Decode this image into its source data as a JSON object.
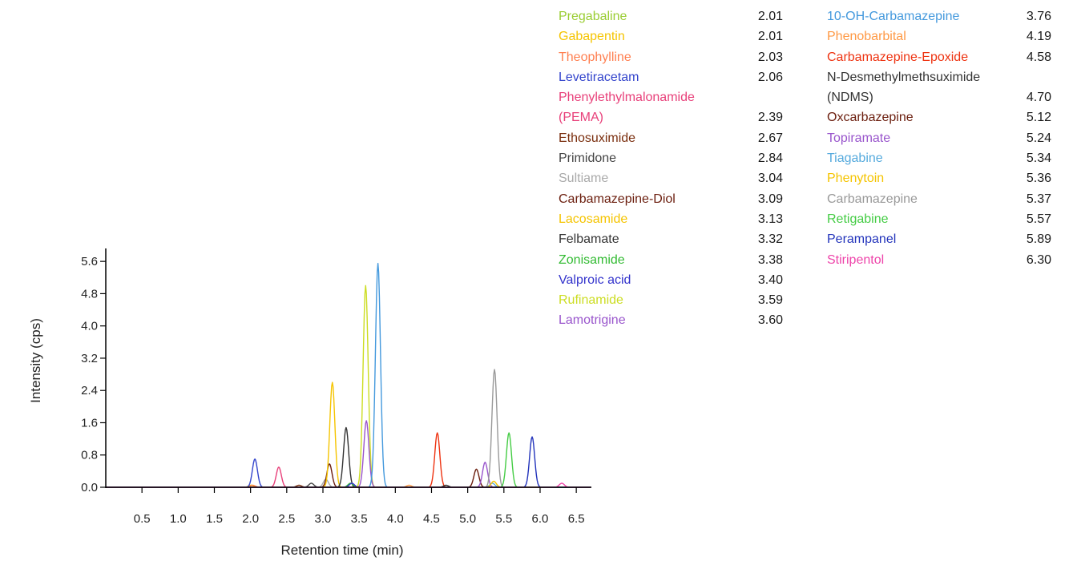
{
  "chart_data": {
    "type": "line",
    "title": "",
    "xlabel": "Retention time (min)",
    "ylabel": "Intensity (cps)",
    "xlim": [
      0,
      6.7
    ],
    "ylim": [
      0,
      6.0
    ],
    "xticks": [
      "0.5",
      "1.0",
      "1.5",
      "2.0",
      "2.5",
      "3.0",
      "3.5",
      "4.0",
      "4.5",
      "5.0",
      "5.5",
      "6.0",
      "6.5"
    ],
    "yticks": [
      "0.0",
      "0.8",
      "1.6",
      "2.4",
      "3.2",
      "4.0",
      "4.8",
      "5.6"
    ],
    "grid": false,
    "legend_placement": "top-right",
    "series": [
      {
        "name": "Pregabaline",
        "rt": "2.01",
        "peak_rt": 2.01,
        "height": 0.05,
        "color": "#9acd32"
      },
      {
        "name": "Gabapentin",
        "rt": "2.01",
        "peak_rt": 2.01,
        "height": 0.05,
        "color": "#f5c400"
      },
      {
        "name": "Theophylline",
        "rt": "2.03",
        "peak_rt": 2.03,
        "height": 0.05,
        "color": "#ff7f50"
      },
      {
        "name": "Levetiracetam",
        "rt": "2.06",
        "peak_rt": 2.06,
        "height": 0.7,
        "color": "#3344cc"
      },
      {
        "name": "Phenylethylmalonamide (PEMA)",
        "rt": "2.39",
        "peak_rt": 2.39,
        "height": 0.5,
        "color": "#e8407a"
      },
      {
        "name": "Ethosuximide",
        "rt": "2.67",
        "peak_rt": 2.67,
        "height": 0.05,
        "color": "#7a2e0e"
      },
      {
        "name": "Primidone",
        "rt": "2.84",
        "peak_rt": 2.84,
        "height": 0.1,
        "color": "#444444"
      },
      {
        "name": "Sultiame",
        "rt": "3.04",
        "peak_rt": 3.04,
        "height": 0.2,
        "color": "#aaaaaa"
      },
      {
        "name": "Carbamazepine-Diol",
        "rt": "3.09",
        "peak_rt": 3.09,
        "height": 0.58,
        "color": "#6b1e0e"
      },
      {
        "name": "Lacosamide",
        "rt": "3.13",
        "peak_rt": 3.13,
        "height": 2.6,
        "color": "#f5c400"
      },
      {
        "name": "Felbamate",
        "rt": "3.32",
        "peak_rt": 3.32,
        "height": 1.48,
        "color": "#333333"
      },
      {
        "name": "Zonisamide",
        "rt": "3.38",
        "peak_rt": 3.38,
        "height": 0.1,
        "color": "#33bb33"
      },
      {
        "name": "Valproic acid",
        "rt": "3.40",
        "peak_rt": 3.4,
        "height": 0.1,
        "color": "#3333cc"
      },
      {
        "name": "Rufinamide",
        "rt": "3.59",
        "peak_rt": 3.59,
        "height": 5.0,
        "color": "#ccdd22"
      },
      {
        "name": "Lamotrigine",
        "rt": "3.60",
        "peak_rt": 3.6,
        "height": 1.65,
        "color": "#9955cc"
      },
      {
        "name": "10-OH-Carbamazepine",
        "rt": "3.76",
        "peak_rt": 3.76,
        "height": 5.55,
        "color": "#4499dd"
      },
      {
        "name": "Phenobarbital",
        "rt": "4.19",
        "peak_rt": 4.19,
        "height": 0.05,
        "color": "#ff9944"
      },
      {
        "name": "Carbamazepine-Epoxide",
        "rt": "4.58",
        "peak_rt": 4.58,
        "height": 1.35,
        "color": "#ee3311"
      },
      {
        "name": "N-Desmethylmethsuximide (NDMS)",
        "rt": "4.70",
        "peak_rt": 4.7,
        "height": 0.05,
        "color": "#333333"
      },
      {
        "name": "Oxcarbazepine",
        "rt": "5.12",
        "peak_rt": 5.12,
        "height": 0.45,
        "color": "#6b1e0e"
      },
      {
        "name": "Topiramate",
        "rt": "5.24",
        "peak_rt": 5.24,
        "height": 0.62,
        "color": "#9955cc"
      },
      {
        "name": "Tiagabine",
        "rt": "5.34",
        "peak_rt": 5.34,
        "height": 0.1,
        "color": "#55aadd"
      },
      {
        "name": "Phenytoin",
        "rt": "5.36",
        "peak_rt": 5.36,
        "height": 0.15,
        "color": "#f5c400"
      },
      {
        "name": "Carbamazepine",
        "rt": "5.37",
        "peak_rt": 5.37,
        "height": 2.92,
        "color": "#999999"
      },
      {
        "name": "Retigabine",
        "rt": "5.57",
        "peak_rt": 5.57,
        "height": 1.35,
        "color": "#44cc44"
      },
      {
        "name": "Perampanel",
        "rt": "5.89",
        "peak_rt": 5.89,
        "height": 1.25,
        "color": "#2233bb"
      },
      {
        "name": "Stiripentol",
        "rt": "6.30",
        "peak_rt": 6.3,
        "height": 0.1,
        "color": "#ee44aa"
      }
    ]
  }
}
